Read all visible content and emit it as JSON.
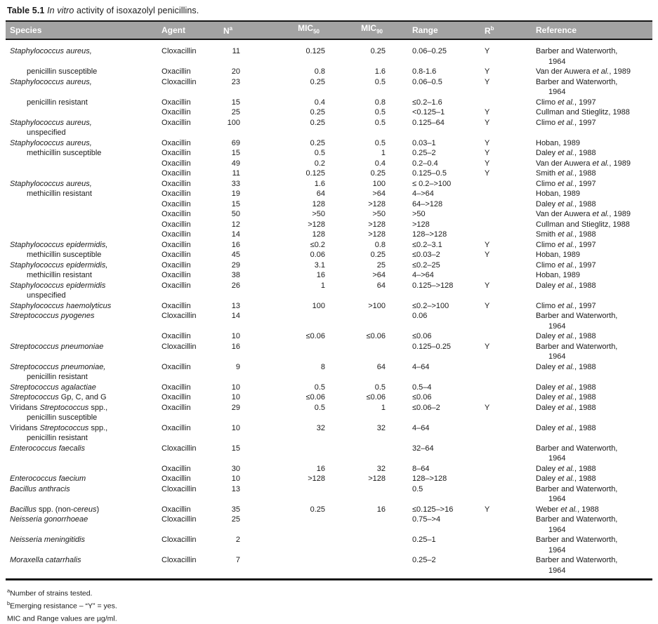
{
  "title": {
    "prefix": "Table 5.1",
    "italic": "In vitro",
    "rest": "activity of isoxazolyl penicillins."
  },
  "colors": {
    "header_bg": "#a3a3a3",
    "header_text": "#ffffff",
    "body_text": "#1a1a1a",
    "rule": "#161616"
  },
  "table": {
    "columns": [
      {
        "label": "Species"
      },
      {
        "label": "Agent"
      },
      {
        "label": "N",
        "sup": "a"
      },
      {
        "label": "MIC",
        "sub": "50"
      },
      {
        "label": "MIC",
        "sub": "90"
      },
      {
        "label": "Range"
      },
      {
        "label": "R",
        "sup": "b"
      },
      {
        "label": "Reference"
      }
    ],
    "rows": [
      {
        "sp": [
          [
            "Staphylococcus aureus,",
            1
          ]
        ],
        "a": "Cloxacillin",
        "n": "11",
        "m1": "0.125",
        "m2": "0.25",
        "rg": "0.06–0.25",
        "r": "Y",
        "rf": "Barber and Waterworth,"
      },
      {
        "rf": "1964",
        "ri": 1
      },
      {
        "sp": [
          [
            "penicillin susceptible",
            0
          ]
        ],
        "si": 1,
        "a": "Oxacillin",
        "n": "20",
        "m1": "0.8",
        "m2": "1.6",
        "rg": "0.8-1.6",
        "r": "Y",
        "rf": "Van der Auwera et al., 1989"
      },
      {
        "sp": [
          [
            "Staphylococcus aureus,",
            1
          ]
        ],
        "a": "Cloxacillin",
        "n": "23",
        "m1": "0.25",
        "m2": "0.5",
        "rg": "0.06–0.5",
        "r": "Y",
        "rf": "Barber and Waterworth,"
      },
      {
        "rf": "1964",
        "ri": 1
      },
      {
        "sp": [
          [
            "penicillin resistant",
            0
          ]
        ],
        "si": 1,
        "a": "Oxacillin",
        "n": "15",
        "m1": "0.4",
        "m2": "0.8",
        "rg": "≤0.2–1.6",
        "rf": "Climo et al., 1997"
      },
      {
        "a": "Oxacillin",
        "n": "25",
        "m1": "0.25",
        "m2": "0.5",
        "rg": "<0.125–1",
        "r": "Y",
        "rf": "Cullman and Stieglitz, 1988"
      },
      {
        "sp": [
          [
            "Staphylococcus aureus,",
            1
          ]
        ],
        "a": "Oxacillin",
        "n": "100",
        "m1": "0.25",
        "m2": "0.5",
        "rg": "0.125–64",
        "r": "Y",
        "rf": "Climo et al., 1997"
      },
      {
        "sp": [
          [
            "unspecified",
            0
          ]
        ],
        "si": 1
      },
      {
        "sp": [
          [
            "Staphylococcus aureus,",
            1
          ]
        ],
        "a": "Oxacillin",
        "n": "69",
        "m1": "0.25",
        "m2": "0.5",
        "rg": "0.03–1",
        "r": "Y",
        "rf": "Hoban, 1989"
      },
      {
        "sp": [
          [
            "methicillin susceptible",
            0
          ]
        ],
        "si": 1,
        "a": "Oxacillin",
        "n": "15",
        "m1": "0.5",
        "m2": "1",
        "rg": "0.25–2",
        "r": "Y",
        "rf": "Daley et al., 1988"
      },
      {
        "a": "Oxacillin",
        "n": "49",
        "m1": "0.2",
        "m2": "0.4",
        "rg": "0.2–0.4",
        "r": "Y",
        "rf": "Van der Auwera et al., 1989"
      },
      {
        "a": "Oxacillin",
        "n": "11",
        "m1": "0.125",
        "m2": "0.25",
        "rg": "0.125–0.5",
        "r": "Y",
        "rf": "Smith et al., 1988"
      },
      {
        "sp": [
          [
            "Staphylococcus aureus,",
            1
          ]
        ],
        "a": "Oxacillin",
        "n": "33",
        "m1": "1.6",
        "m2": "100",
        "rg": "≤ 0.2–>100",
        "rf": "Climo et al., 1997"
      },
      {
        "sp": [
          [
            "methicillin resistant",
            0
          ]
        ],
        "si": 1,
        "a": "Oxacillin",
        "n": "19",
        "m1": "64",
        "m2": ">64",
        "rg": "4–>64",
        "rf": "Hoban, 1989"
      },
      {
        "a": "Oxacillin",
        "n": "15",
        "m1": "128",
        "m2": ">128",
        "rg": "64–>128",
        "rf": "Daley et al., 1988"
      },
      {
        "a": "Oxacillin",
        "n": "50",
        "m1": ">50",
        "m2": ">50",
        "rg": ">50",
        "rf": "Van der Auwera et al., 1989"
      },
      {
        "a": "Oxacillin",
        "n": "12",
        "m1": ">128",
        "m2": ">128",
        "rg": ">128",
        "rf": "Cullman and Stieglitz, 1988"
      },
      {
        "a": "Oxacillin",
        "n": "14",
        "m1": "128",
        "m2": ">128",
        "rg": "128–>128",
        "rf": "Smith et al., 1988"
      },
      {
        "sp": [
          [
            "Staphylococcus epidermidis,",
            1
          ]
        ],
        "a": "Oxacillin",
        "n": "16",
        "m1": "≤0.2",
        "m2": "0.8",
        "rg": "≤0.2–3.1",
        "r": "Y",
        "rf": "Climo et al., 1997"
      },
      {
        "sp": [
          [
            "methicillin susceptible",
            0
          ]
        ],
        "si": 1,
        "a": "Oxacillin",
        "n": "45",
        "m1": "0.06",
        "m2": "0.25",
        "rg": "≤0.03–2",
        "r": "Y",
        "rf": "Hoban, 1989"
      },
      {
        "sp": [
          [
            "Staphylococcus epidermidis,",
            1
          ]
        ],
        "a": "Oxacillin",
        "n": "29",
        "m1": "3.1",
        "m2": "25",
        "rg": "≤0.2–25",
        "rf": "Climo et al., 1997"
      },
      {
        "sp": [
          [
            "methicillin resistant",
            0
          ]
        ],
        "si": 1,
        "a": "Oxacillin",
        "n": "38",
        "m1": "16",
        "m2": ">64",
        "rg": "4–>64",
        "rf": "Hoban, 1989"
      },
      {
        "sp": [
          [
            "Staphylococcus epidermidis",
            1
          ]
        ],
        "a": "Oxacillin",
        "n": "26",
        "m1": "1",
        "m2": "64",
        "rg": "0.125–>128",
        "r": "Y",
        "rf": "Daley et al., 1988"
      },
      {
        "sp": [
          [
            "unspecified",
            0
          ]
        ],
        "si": 1
      },
      {
        "sp": [
          [
            "Staphylococcus haemolyticus",
            1
          ]
        ],
        "a": "Oxacillin",
        "n": "13",
        "m1": "100",
        "m2": ">100",
        "rg": "≤0.2–>100",
        "r": "Y",
        "rf": "Climo et al., 1997"
      },
      {
        "sp": [
          [
            "Streptococcus pyogenes",
            1
          ]
        ],
        "a": "Cloxacillin",
        "n": "14",
        "rg": "0.06",
        "rf": "Barber and Waterworth,"
      },
      {
        "rf": "1964",
        "ri": 1
      },
      {
        "a": "Oxacillin",
        "n": "10",
        "m1": "≤0.06",
        "m2": "≤0.06",
        "rg": "≤0.06",
        "rf": "Daley et al., 1988"
      },
      {
        "sp": [
          [
            "Streptococcus pneumoniae",
            1
          ]
        ],
        "a": "Cloxacillin",
        "n": "16",
        "rg": "0.125–0.25",
        "r": "Y",
        "rf": "Barber and Waterworth,"
      },
      {
        "rf": "1964",
        "ri": 1
      },
      {
        "sp": [
          [
            "Streptococcus pneumoniae,",
            1
          ]
        ],
        "a": "Oxacillin",
        "n": "9",
        "m1": "8",
        "m2": "64",
        "rg": "4–64",
        "rf": "Daley et al., 1988"
      },
      {
        "sp": [
          [
            "penicillin resistant",
            0
          ]
        ],
        "si": 1
      },
      {
        "sp": [
          [
            "Streptococcus agalactiae",
            1
          ]
        ],
        "a": "Oxacillin",
        "n": "10",
        "m1": "0.5",
        "m2": "0.5",
        "rg": "0.5–4",
        "rf": "Daley et al., 1988"
      },
      {
        "sp": [
          [
            "Streptococcus",
            1
          ],
          [
            " Gp, C, and G",
            0
          ]
        ],
        "a": "Oxacillin",
        "n": "10",
        "m1": "≤0.06",
        "m2": "≤0.06",
        "rg": "≤0.06",
        "rf": "Daley et al., 1988"
      },
      {
        "sp": [
          [
            "Viridans ",
            0
          ],
          [
            "Streptococcus",
            1
          ],
          [
            " spp.,",
            0
          ]
        ],
        "a": "Oxacillin",
        "n": "29",
        "m1": "0.5",
        "m2": "1",
        "rg": "≤0.06–2",
        "r": "Y",
        "rf": "Daley et al., 1988"
      },
      {
        "sp": [
          [
            "penicillin susceptible",
            0
          ]
        ],
        "si": 1
      },
      {
        "sp": [
          [
            "Viridans ",
            0
          ],
          [
            "Streptococcus",
            1
          ],
          [
            " spp.,",
            0
          ]
        ],
        "a": "Oxacillin",
        "n": "10",
        "m1": "32",
        "m2": "32",
        "rg": "4–64",
        "rf": "Daley et al., 1988"
      },
      {
        "sp": [
          [
            "penicillin resistant",
            0
          ]
        ],
        "si": 1
      },
      {
        "sp": [
          [
            "Enterococcus faecalis",
            1
          ]
        ],
        "a": "Cloxacillin",
        "n": "15",
        "rg": "32–64",
        "rf": "Barber and Waterworth,"
      },
      {
        "rf": "1964",
        "ri": 1
      },
      {
        "a": "Oxacillin",
        "n": "30",
        "m1": "16",
        "m2": "32",
        "rg": "8–64",
        "rf": "Daley et al., 1988"
      },
      {
        "sp": [
          [
            "Enterococcus faecium",
            1
          ]
        ],
        "a": "Oxacillin",
        "n": "10",
        "m1": ">128",
        "m2": ">128",
        "rg": "128–>128",
        "rf": "Daley et al., 1988"
      },
      {
        "sp": [
          [
            "Bacillus anthracis",
            1
          ]
        ],
        "a": "Cloxacillin",
        "n": "13",
        "rg": "0.5",
        "rf": "Barber and Waterworth,"
      },
      {
        "rf": "1964",
        "ri": 1
      },
      {
        "sp": [
          [
            "Bacillus",
            1
          ],
          [
            " spp. (non-",
            0
          ],
          [
            "cereus",
            1
          ],
          [
            ")",
            0
          ]
        ],
        "a": "Oxacillin",
        "n": "35",
        "m1": "0.25",
        "m2": "16",
        "rg": "≤0.125–>16",
        "r": "Y",
        "rf": "Weber et al., 1988"
      },
      {
        "sp": [
          [
            "Neisseria gonorrhoeae",
            1
          ]
        ],
        "a": "Cloxacillin",
        "n": "25",
        "rg": "0.75–>4",
        "rf": "Barber and Waterworth,"
      },
      {
        "rf": "1964",
        "ri": 1
      },
      {
        "sp": [
          [
            "Neisseria meningitidis",
            1
          ]
        ],
        "a": "Cloxacillin",
        "n": "2",
        "rg": "0.25–1",
        "rf": "Barber and Waterworth,"
      },
      {
        "rf": "1964",
        "ri": 1
      },
      {
        "sp": [
          [
            "Moraxella catarrhalis",
            1
          ]
        ],
        "a": "Cloxacillin",
        "n": "7",
        "rg": "0.25–2",
        "rf": "Barber and Waterworth,"
      },
      {
        "rf": "1964",
        "ri": 1
      }
    ]
  },
  "footnotes": [
    {
      "sup": "a",
      "text": "Number of strains tested."
    },
    {
      "sup": "b",
      "text": "Emerging resistance – “Y” = yes."
    },
    {
      "sup": "",
      "text": "MIC and Range values are µg/ml."
    }
  ]
}
